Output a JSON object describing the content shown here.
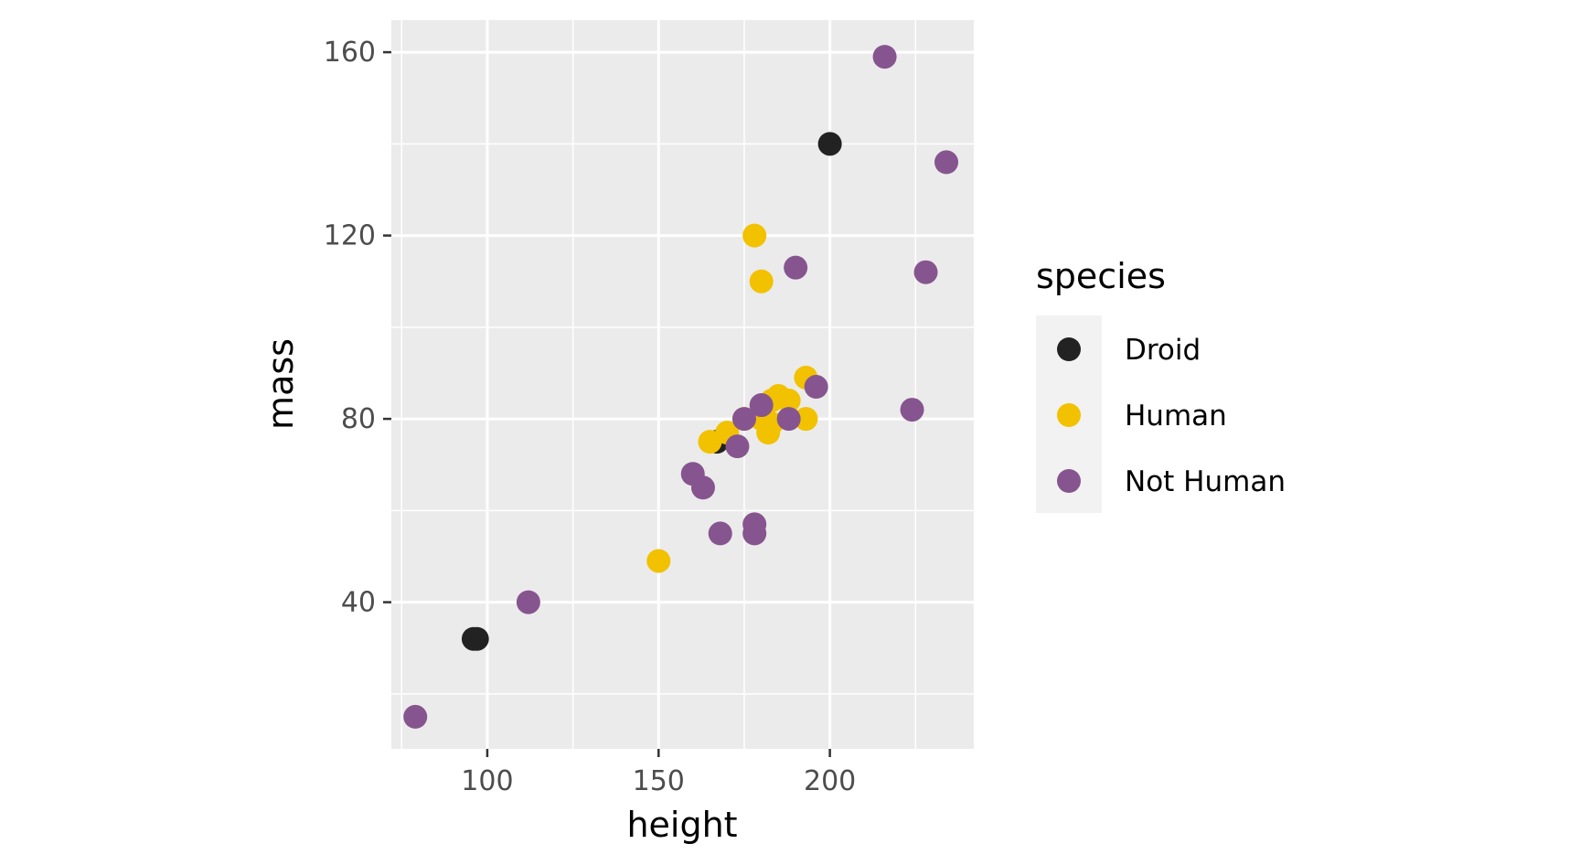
{
  "chart_data": {
    "type": "scatter",
    "xlabel": "height",
    "ylabel": "mass",
    "xlim": [
      72,
      242
    ],
    "ylim": [
      8,
      167
    ],
    "x_ticks": [
      100,
      150,
      200
    ],
    "x_tick_labels": [
      "100",
      "150",
      "200"
    ],
    "x_minor_ticks": [
      75,
      125,
      175,
      225
    ],
    "y_ticks": [
      40,
      80,
      120,
      160
    ],
    "y_tick_labels": [
      "40",
      "80",
      "120",
      "160"
    ],
    "y_minor_ticks": [
      20,
      60,
      100,
      140
    ],
    "grid": true,
    "panel_background": "#ebebeb",
    "legend": {
      "title": "species",
      "placement": "right",
      "entries": [
        {
          "label": "Droid",
          "color": "#222222"
        },
        {
          "label": "Human",
          "color": "#f2c100"
        },
        {
          "label": "Not Human",
          "color": "#86558f"
        }
      ]
    },
    "series": [
      {
        "name": "Droid",
        "color": "#222222",
        "points": [
          {
            "x": 96,
            "y": 32
          },
          {
            "x": 97,
            "y": 32
          },
          {
            "x": 167,
            "y": 75
          },
          {
            "x": 200,
            "y": 140
          }
        ]
      },
      {
        "name": "Human",
        "color": "#f2c100",
        "points": [
          {
            "x": 150,
            "y": 49
          },
          {
            "x": 165,
            "y": 75
          },
          {
            "x": 170,
            "y": 77
          },
          {
            "x": 175,
            "y": 80
          },
          {
            "x": 178,
            "y": 120
          },
          {
            "x": 180,
            "y": 110
          },
          {
            "x": 180,
            "y": 80
          },
          {
            "x": 182,
            "y": 77
          },
          {
            "x": 183,
            "y": 79
          },
          {
            "x": 183,
            "y": 84
          },
          {
            "x": 185,
            "y": 85
          },
          {
            "x": 188,
            "y": 84
          },
          {
            "x": 193,
            "y": 89
          },
          {
            "x": 193,
            "y": 80
          }
        ]
      },
      {
        "name": "Not Human",
        "color": "#86558f",
        "points": [
          {
            "x": 79,
            "y": 15
          },
          {
            "x": 112,
            "y": 40
          },
          {
            "x": 160,
            "y": 68
          },
          {
            "x": 163,
            "y": 65
          },
          {
            "x": 168,
            "y": 55
          },
          {
            "x": 173,
            "y": 74
          },
          {
            "x": 175,
            "y": 80
          },
          {
            "x": 178,
            "y": 57
          },
          {
            "x": 178,
            "y": 55
          },
          {
            "x": 180,
            "y": 83
          },
          {
            "x": 188,
            "y": 80
          },
          {
            "x": 190,
            "y": 113
          },
          {
            "x": 196,
            "y": 87
          },
          {
            "x": 216,
            "y": 159
          },
          {
            "x": 224,
            "y": 82
          },
          {
            "x": 228,
            "y": 112
          },
          {
            "x": 234,
            "y": 136
          }
        ]
      }
    ]
  }
}
